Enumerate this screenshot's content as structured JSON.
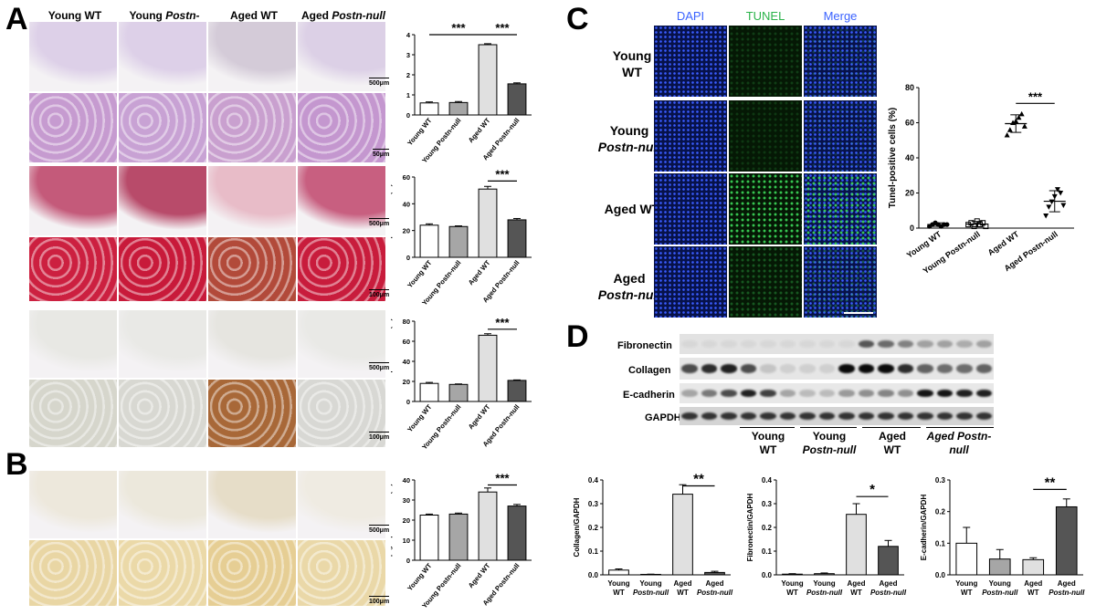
{
  "panels": {
    "a": "A",
    "b": "B",
    "c": "C",
    "d": "D"
  },
  "histo_columns": [
    {
      "line1": "Young WT",
      "line2": ""
    },
    {
      "line1": "Young ",
      "line2": "Postn-null"
    },
    {
      "line1": "Aged WT",
      "line2": ""
    },
    {
      "line1": "Aged ",
      "line2": "Postn-null"
    }
  ],
  "scale": {
    "s500": "500μm",
    "s50": "50μm",
    "s100": "100μm"
  },
  "stars": {
    "three": "***",
    "two": "**",
    "one": "*"
  },
  "colors": {
    "young_wt": "#ffffff",
    "young_null": "#a6a6a6",
    "aged_wt": "#e0e0e0",
    "aged_null": "#555555",
    "dapi": "#3b63ff",
    "tunel": "#2bb34a"
  },
  "chart_data": [
    {
      "type": "bar",
      "id": "gsi",
      "categories": [
        "Young WT",
        "Young Postn-null",
        "Aged WT",
        "Aged Postn-null"
      ],
      "values": [
        0.6,
        0.62,
        3.5,
        1.55
      ],
      "errors": [
        0.05,
        0.05,
        0.05,
        0.05
      ],
      "ylabel": "Glomerular sclerosis index",
      "ylim": [
        0,
        4
      ],
      "ticks": [
        "0",
        "1",
        "2",
        "3",
        "4"
      ]
    },
    {
      "type": "bar",
      "id": "mt",
      "categories": [
        "Young WT",
        "Young Postn-null",
        "Aged WT",
        "Aged Postn-null"
      ],
      "values": [
        24,
        23,
        51,
        28
      ],
      "errors": [
        1,
        0.5,
        2,
        1
      ],
      "ylabel": "MT-positive area (%)",
      "ylim": [
        0,
        60
      ],
      "ticks": [
        "0",
        "20",
        "40",
        "60"
      ]
    },
    {
      "type": "bar",
      "id": "periostin",
      "categories": [
        "Young WT",
        "Young Postn-null",
        "Aged WT",
        "Aged Postn-null"
      ],
      "values": [
        18,
        17,
        66,
        21
      ],
      "errors": [
        1,
        0.5,
        1.5,
        0.5
      ],
      "ylabel": "Periostin-positive area (%)",
      "ylim": [
        0,
        80
      ],
      "ticks": [
        "0",
        "20",
        "40",
        "60",
        "80"
      ]
    },
    {
      "type": "bar",
      "id": "bgal",
      "categories": [
        "Young WT",
        "Young Postn-null",
        "Aged WT",
        "Aged Postn-null"
      ],
      "values": [
        22.5,
        23,
        34,
        27
      ],
      "errors": [
        0.5,
        0.5,
        2,
        0.8
      ],
      "ylabel": "β-gal-positive area (%)",
      "ylim": [
        0,
        40
      ],
      "ticks": [
        "0",
        "10",
        "20",
        "30",
        "40"
      ]
    },
    {
      "type": "scatter",
      "id": "tunel",
      "categories": [
        "Young WT",
        "Young Postn-null",
        "Aged WT",
        "Aged Postn-null"
      ],
      "points": [
        [
          1,
          2,
          3,
          2,
          1,
          2,
          2
        ],
        [
          2,
          3,
          1,
          4,
          2,
          3,
          1
        ],
        [
          53,
          56,
          60,
          61,
          63,
          65,
          58
        ],
        [
          7,
          12,
          15,
          18,
          22,
          20,
          13
        ]
      ],
      "means": [
        2,
        2.3,
        59.5,
        15.3
      ],
      "sd": [
        1,
        1.5,
        5,
        6
      ],
      "ylabel": "Tunel-positive cells (%)",
      "ylim": [
        0,
        80
      ],
      "ticks": [
        "0",
        "20",
        "40",
        "60",
        "80"
      ]
    },
    {
      "type": "bar",
      "id": "collagen",
      "categories": [
        "Young WT",
        "Young Postn-null",
        "Aged WT",
        "Aged Postn-null"
      ],
      "values": [
        0.02,
        0.002,
        0.34,
        0.01
      ],
      "errors": [
        0.005,
        0.001,
        0.04,
        0.005
      ],
      "ylabel": "Collagen/GAPDH",
      "ylim": [
        0,
        0.4
      ],
      "ticks": [
        "0.0",
        "0.1",
        "0.2",
        "0.3",
        "0.4"
      ]
    },
    {
      "type": "bar",
      "id": "fibronectin",
      "categories": [
        "Young WT",
        "Young Postn-null",
        "Aged WT",
        "Aged Postn-null"
      ],
      "values": [
        0.003,
        0.005,
        0.255,
        0.12
      ],
      "errors": [
        0.002,
        0.003,
        0.045,
        0.025
      ],
      "ylabel": "Fibronectin/GAPDH",
      "ylim": [
        0,
        0.4
      ],
      "ticks": [
        "0.0",
        "0.1",
        "0.2",
        "0.3",
        "0.4"
      ]
    },
    {
      "type": "bar",
      "id": "ecad",
      "categories": [
        "Young WT",
        "Young Postn-null",
        "Aged WT",
        "Aged Postn-null"
      ],
      "values": [
        0.1,
        0.05,
        0.048,
        0.215
      ],
      "errors": [
        0.05,
        0.03,
        0.006,
        0.025
      ],
      "ylabel": "E-cadherin/GAPDH",
      "ylim": [
        0,
        0.3
      ],
      "ticks": [
        "0.0",
        "0.1",
        "0.2",
        "0.3"
      ]
    }
  ],
  "panel_c": {
    "channels": [
      "DAPI",
      "TUNEL",
      "Merge"
    ],
    "rows": [
      {
        "line1": "Young",
        "line2": "WT"
      },
      {
        "line1": "Young",
        "line2": "Postn-null"
      },
      {
        "line1": "Aged WT",
        "line2": ""
      },
      {
        "line1": "Aged",
        "line2": "Postn-null"
      }
    ]
  },
  "panel_d": {
    "blots": [
      "Fibronectin",
      "Collagen",
      "E-cadherin",
      "GAPDH"
    ],
    "groups": [
      {
        "line1": "Young",
        "line2": "WT"
      },
      {
        "line1": "Young",
        "line2": "Postn-null"
      },
      {
        "line1": "Aged",
        "line2": "WT"
      },
      {
        "line1": "Aged Postn-",
        "line2": "null"
      }
    ]
  }
}
